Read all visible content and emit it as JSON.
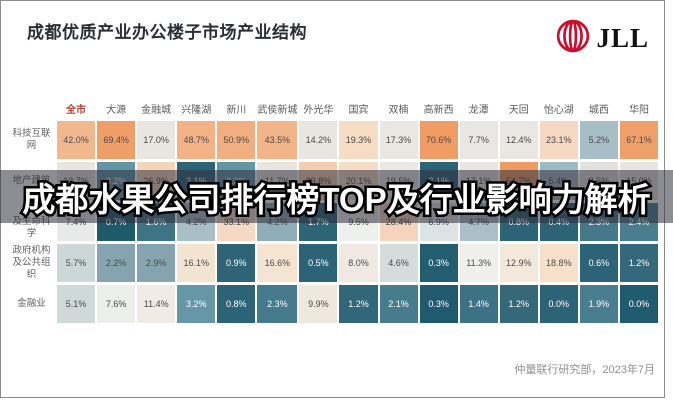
{
  "header": {
    "title": "成都优质产业办公楼子市场产业结构",
    "logo_text": "JLL",
    "logo_color": "#c8102e"
  },
  "overlay": {
    "text": "成都水果公司排行榜TOP及行业影响力解析"
  },
  "footer": {
    "credit": "仲量联行研究部，2023年7月"
  },
  "chart_data": {
    "type": "heatmap",
    "title": "成都优质产业办公楼子市场产业结构",
    "unit": "%",
    "legend_position": "none",
    "grid": false,
    "highlight_first_column": true,
    "highlight_column_color": "#a8432f",
    "palette": {
      "high": "#ef9e67",
      "mid": "#e9e5e0",
      "low": "#1f5a6b"
    },
    "columns": [
      "全市",
      "大源",
      "金融城",
      "兴隆湖",
      "新川",
      "武侯新城",
      "外光华",
      "国宾",
      "双楠",
      "高新西",
      "龙潭",
      "天回",
      "怡心湖",
      "城西",
      "华阳"
    ],
    "rows": [
      {
        "label": "科技互联网",
        "values": [
          42.0,
          69.4,
          17.0,
          48.7,
          50.9,
          43.5,
          14.2,
          19.3,
          17.3,
          70.6,
          7.7,
          12.4,
          23.1,
          5.2,
          67.1
        ],
        "colors": [
          "#f2b88d",
          "#ef9e67",
          "#e9e5e0",
          "#f2b286",
          "#f1ae80",
          "#f2b489",
          "#e9e5e0",
          "#f6dcc3",
          "#eae6e1",
          "#ef9d65",
          "#e8e7e4",
          "#eae6e1",
          "#f5d8bf",
          "#a7bec7",
          "#efa06a"
        ]
      },
      {
        "label": "地产建筑",
        "values": [
          13.7,
          3.2,
          26.9,
          2.1,
          3.3,
          11.7,
          29.8,
          20.1,
          19.5,
          2.1,
          17.1,
          54.7,
          5.4,
          8.5,
          15.0
        ],
        "colors": [
          "#e9e5e0",
          "#6295a6",
          "#f5d5b9",
          "#2d6376",
          "#6295a6",
          "#e9e5e0",
          "#f4cfae",
          "#f6dcc5",
          "#ece9e4",
          "#2d6376",
          "#e9e5e0",
          "#ee9c64",
          "#9fb9c2",
          "#e2e1de",
          "#e9e5e0"
        ]
      },
      {
        "label": "医药\n及生命科学",
        "values": [
          7.4,
          0.7,
          1.6,
          4.2,
          33.1,
          4.2,
          1.7,
          9.5,
          28.4,
          6.9,
          4.7,
          0.8,
          0.4,
          2.3,
          2.4
        ],
        "colors": [
          "#e8eaea",
          "#1f5a6b",
          "#3f7486",
          "#a8bfc6",
          "#f6d9c4",
          "#8fadb8",
          "#2d6577",
          "#eef0ee",
          "#f5d3bc",
          "#dce3e4",
          "#aabfc8",
          "#2d6376",
          "#2d6376",
          "#45798a",
          "#4a7e8f"
        ]
      },
      {
        "label": "政府机构\n及公共组织",
        "values": [
          5.7,
          2.2,
          2.9,
          16.1,
          0.9,
          16.6,
          0.5,
          8.0,
          4.6,
          0.3,
          11.3,
          12.9,
          18.8,
          0.6,
          1.2
        ],
        "colors": [
          "#ccd8d7",
          "#85a4af",
          "#85a4af",
          "#f3e3d1",
          "#2e6476",
          "#f4e4d2",
          "#2d6376",
          "#efe9e1",
          "#d4dcdc",
          "#235d70",
          "#eff0ec",
          "#f3e8da",
          "#f6e0c9",
          "#2d6376",
          "#35687a"
        ]
      },
      {
        "label": "金融业",
        "values": [
          5.1,
          7.6,
          11.4,
          3.2,
          0.8,
          2.3,
          9.9,
          1.2,
          2.1,
          0.3,
          1.4,
          1.2,
          0.0,
          1.9,
          0.0
        ],
        "colors": [
          "#cfdad8",
          "#eceeeb",
          "#f0ece5",
          "#6697a7",
          "#2d6376",
          "#447a8b",
          "#f0e8dc",
          "#326779",
          "#477c8d",
          "#1f5a6e",
          "#3d7285",
          "#356879",
          "#2d6376",
          "#4a7e8f",
          "#215b6f"
        ]
      }
    ]
  }
}
